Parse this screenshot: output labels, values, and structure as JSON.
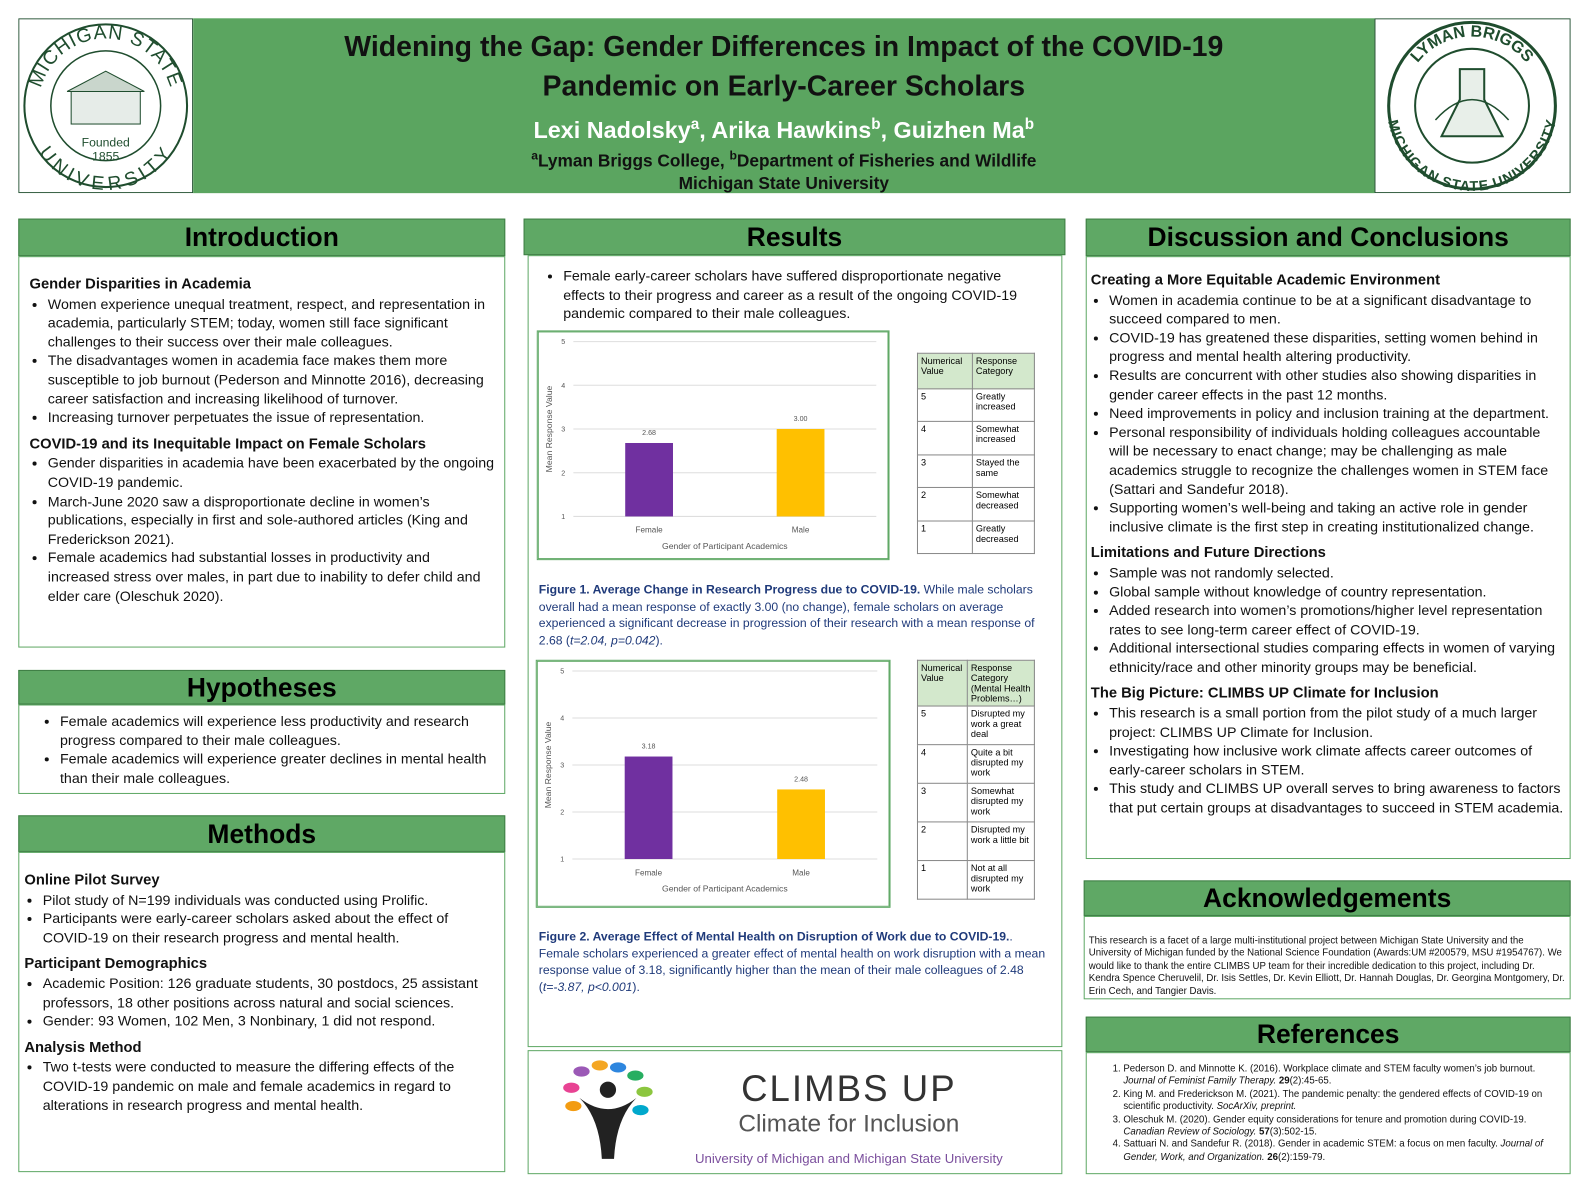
{
  "header": {
    "title_lines": [
      "Widening the Gap: Gender Differences in Impact of the COVID-19",
      "Pandemic on Early-Career Scholars"
    ],
    "authors": [
      {
        "name": "Lexi Nadolsky",
        "sup": "a",
        "sep": ", "
      },
      {
        "name": "Arika Hawkins",
        "sup": "b",
        "sep": ", "
      },
      {
        "name": "Guizhen Ma",
        "sup": "b"
      }
    ],
    "affiliations": [
      {
        "sup": "a",
        "text": "Lyman Briggs College, "
      },
      {
        "sup": "b",
        "text": "Department of Fisheries and Wildlife"
      }
    ],
    "institution": "Michigan State University"
  },
  "logos": {
    "left": {
      "ring_top": "MICHIGAN STATE",
      "ring_bottom": "UNIVERSITY",
      "founded": "Founded",
      "year": "1855"
    },
    "right": {
      "ring_top": "LYMAN BRIGGS",
      "ring_bottom": "MICHIGAN STATE UNIVERSITY"
    }
  },
  "introduction": {
    "heading": "Introduction",
    "groups": [
      {
        "subheading": "Gender Disparities in Academia",
        "bullets": [
          "Women experience unequal treatment, respect, and representation in academia, particularly STEM; today, women still face significant challenges to their success over their male colleagues.",
          "The disadvantages women in academia face makes them more susceptible to job burnout (Pederson and Minnotte 2016), decreasing career satisfaction and increasing likelihood of turnover.",
          "Increasing turnover perpetuates the issue of representation."
        ]
      },
      {
        "subheading": "COVID-19 and its Inequitable Impact on Female Scholars",
        "bullets": [
          "Gender disparities in academia have been exacerbated by the ongoing COVID-19 pandemic.",
          "March-June 2020 saw a disproportionate decline in women’s publications, especially in first and sole-authored articles (King and Frederickson 2021).",
          "Female academics had substantial losses in productivity and increased stress over males, in part due to inability to defer child and elder care (Oleschuk 2020)."
        ]
      }
    ]
  },
  "hypotheses": {
    "heading": "Hypotheses",
    "groups": [
      {
        "bullets": [
          "Female academics  will experience less productivity and research progress compared to their male colleagues.",
          "Female academics  will experience greater declines in mental health than their male colleagues."
        ]
      }
    ]
  },
  "methods": {
    "heading": "Methods",
    "groups": [
      {
        "subheading": "Online Pilot Survey",
        "bullets": [
          "Pilot study of N=199 individuals was conducted using Prolific.",
          "Participants were early-career scholars asked about the effect of COVID-19 on their research progress and mental health."
        ]
      },
      {
        "subheading": "Participant Demographics",
        "bullets": [
          "Academic Position: 126 graduate students, 30 postdocs, 25 assistant professors, 18 other positions across natural and social sciences.",
          "Gender: 93 Women, 102 Men, 3 Nonbinary, 1 did not respond."
        ]
      },
      {
        "subheading": "Analysis Method",
        "bullets": [
          "Two t-tests were conducted to measure the differing effects of the COVID-19 pandemic on male and female academics in regard to alterations in research progress and mental health."
        ]
      }
    ]
  },
  "results": {
    "heading": "Results",
    "groups": [
      {
        "bullets": [
          "Female early-career scholars have suffered disproportionate negative effects to their progress and career as a result of the ongoing COVID-19 pandemic compared to their male colleagues."
        ]
      }
    ],
    "figures": [
      {
        "table": {
          "header": [
            "Numerical Value",
            "Response Category"
          ],
          "rows": [
            [
              5,
              "Greatly increased"
            ],
            [
              4,
              "Somewhat increased"
            ],
            [
              3,
              "Stayed the same"
            ],
            [
              2,
              "Somewhat decreased"
            ],
            [
              1,
              "Greatly decreased"
            ]
          ]
        },
        "caption": [
          {
            "t": "Figure 1. Average Change in Research Progress due to COVID-19.",
            "s": "b"
          },
          {
            "t": " While male scholars overall had a mean response of exactly 3.00 (no change), female scholars on average experienced a significant decrease in progression of their research with a mean response of 2.68 ("
          },
          {
            "t": "t=2.04, p=0.042",
            "s": "i"
          },
          {
            "t": ")."
          }
        ]
      },
      {
        "table": {
          "header": [
            "Numerical Value",
            "Response Category (Mental Health Problems…)"
          ],
          "rows": [
            [
              5,
              "Disrupted my work a great deal"
            ],
            [
              4,
              "Quite a bit disrupted my work"
            ],
            [
              3,
              "Somewhat disrupted my work"
            ],
            [
              2,
              "Disrupted my work a little bit"
            ],
            [
              1,
              "Not at all disrupted my work"
            ]
          ]
        },
        "caption": [
          {
            "t": "Figure 2. Average Effect of Mental Health on Disruption of Work due to COVID-19.",
            "s": "b"
          },
          {
            "t": ". Female scholars experienced a greater effect of mental health on work disruption with a mean response value of 3.18, significantly higher than the mean of their male colleagues of 2.48 ("
          },
          {
            "t": "t=-3.87, p<0.001",
            "s": "i"
          },
          {
            "t": ")."
          }
        ]
      }
    ]
  },
  "chart_data": [
    {
      "type": "bar",
      "x_label": "Gender of Participant Academics",
      "y_label": "Mean Response Value",
      "categories": [
        "Female",
        "Male"
      ],
      "values": [
        2.68,
        3.0
      ],
      "value_labels": [
        "2.68",
        "3.00"
      ],
      "colors": [
        "#7030a0",
        "#ffc000"
      ],
      "ylim": [
        1,
        5
      ],
      "yticks": [
        1,
        2,
        3,
        4,
        5
      ],
      "grid": true
    },
    {
      "type": "bar",
      "x_label": "Gender of Participant Academics",
      "y_label": "Mean Response Value",
      "categories": [
        "Female",
        "Male"
      ],
      "values": [
        3.18,
        2.48
      ],
      "value_labels": [
        "3.18",
        "2.48"
      ],
      "colors": [
        "#7030a0",
        "#ffc000"
      ],
      "ylim": [
        1,
        5
      ],
      "yticks": [
        1,
        2,
        3,
        4,
        5
      ],
      "grid": true
    }
  ],
  "discussion": {
    "heading": "Discussion and Conclusions",
    "groups": [
      {
        "subheading": "Creating a More Equitable Academic Environment",
        "bullets": [
          "Women in academia continue to be at a significant disadvantage to succeed compared to men.",
          "COVID-19 has greatened these disparities, setting women behind in progress and mental health altering productivity.",
          "Results are concurrent with other studies also showing disparities in gender career effects in the past 12 months.",
          "Need improvements in policy and inclusion training at the department.",
          "Personal responsibility of individuals holding colleagues accountable will be necessary to enact change; may be challenging as male academics struggle to recognize the challenges women in STEM face (Sattari and Sandefur 2018).",
          "Supporting women’s well-being and taking an active role in gender inclusive climate is the first step in creating institutionalized change."
        ]
      },
      {
        "subheading": "Limitations and Future Directions",
        "bullets": [
          "Sample was not randomly selected.",
          "Global sample without knowledge of country representation.",
          "Added research into women’s promotions/higher level representation rates to see long-term career effect of COVID-19.",
          "Additional intersectional studies comparing effects in women of varying ethnicity/race and other minority groups may be beneficial."
        ]
      },
      {
        "subheading": "The Big Picture: CLIMBS UP Climate for Inclusion",
        "bullets": [
          "This research is a small portion from the pilot study of a much larger project: CLIMBS UP Climate for Inclusion.",
          "Investigating how inclusive work climate affects career outcomes of early-career scholars in STEM.",
          "This study and CLIMBS UP overall serves to bring awareness to factors that put certain groups at disadvantages to succeed in STEM academia."
        ]
      }
    ]
  },
  "acknowledgements": {
    "heading": "Acknowledgements",
    "text": "This research is a facet of a large multi-institutional project between Michigan State University and the University of Michigan funded by the National Science Foundation (Awards:UM #200579, MSU #1954767).  We would like to thank the entire CLIMBS UP team for their incredible dedication to this project, including Dr. Kendra Spence Cheruvelil, Dr. Isis Settles, Dr. Kevin Elliott, Dr. Hannah Douglas, Dr. Georgina Montgomery, Dr. Erin Cech, and Tangier Davis."
  },
  "references": {
    "heading": "References",
    "items": [
      [
        {
          "t": "Pederson D. and Minnotte K. (2016). Workplace climate and STEM faculty women’s job burnout. "
        },
        {
          "t": "Journal of Feminist Family Therapy. ",
          "s": "i"
        },
        {
          "t": "29",
          "s": "b"
        },
        {
          "t": "(2):45-65."
        }
      ],
      [
        {
          "t": "King M. and Frederickson M. (2021). The pandemic penalty: the gendered effects of COVID-19 on scientific productivity. "
        },
        {
          "t": "SocArXiv, preprint.",
          "s": "i"
        }
      ],
      [
        {
          "t": "Oleschuk M. (2020). Gender equity considerations for tenure and promotion during COVID-19. "
        },
        {
          "t": "Canadian Review of Sociology. ",
          "s": "i"
        },
        {
          "t": "57",
          "s": "b"
        },
        {
          "t": "(3):502-15."
        }
      ],
      [
        {
          "t": "Sattuari N. and Sandefur R. (2018). Gender in academic STEM: a focus on men faculty. "
        },
        {
          "t": "Journal of Gender, Work, and Organization. ",
          "s": "i"
        },
        {
          "t": "26",
          "s": "b"
        },
        {
          "t": "(2):159-79."
        }
      ]
    ]
  },
  "logo_banner": {
    "name": "CLIMBS UP",
    "tagline": "Climate for Inclusion",
    "affiliation": "University of Michigan and Michigan State University"
  }
}
